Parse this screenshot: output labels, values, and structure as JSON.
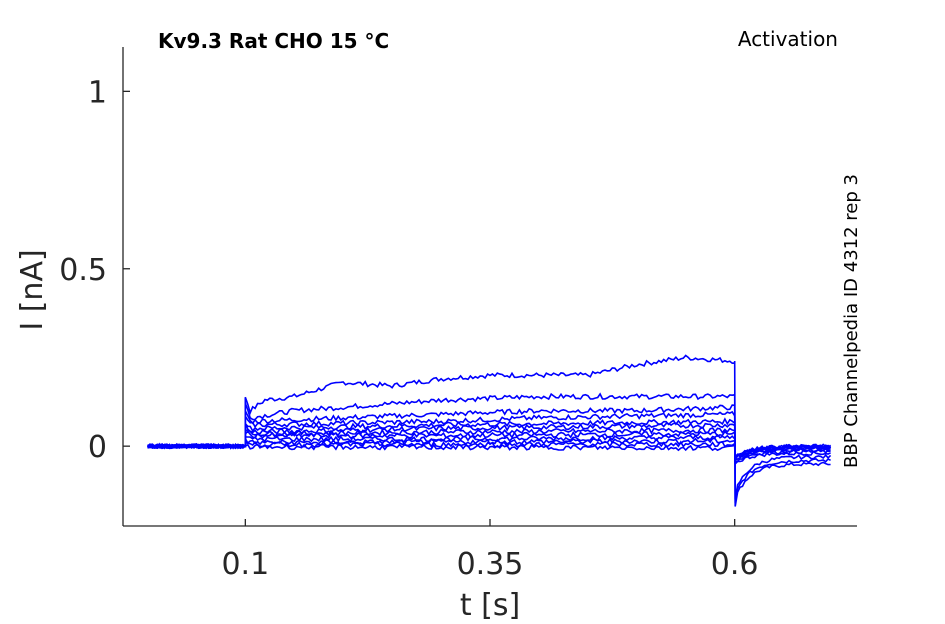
{
  "chart_data": {
    "type": "line",
    "title": "Kv9.3  Rat  CHO  15 °C",
    "protocol": "Activation",
    "side_label": "BBP Channelpedia ID 4312 rep 3",
    "xlabel": "t [s]",
    "ylabel": "I [nA]",
    "xlim": [
      -0.025,
      0.725
    ],
    "ylim": [
      -0.225,
      1.125
    ],
    "xticks": [
      {
        "value": 0.1,
        "label": "0.1"
      },
      {
        "value": 0.35,
        "label": "0.35"
      },
      {
        "value": 0.6,
        "label": "0.6"
      }
    ],
    "yticks": [
      {
        "value": 0,
        "label": "0"
      },
      {
        "value": 0.5,
        "label": "0.5"
      },
      {
        "value": 1,
        "label": "1"
      }
    ],
    "grid": false,
    "line_color": "#0000ff",
    "step_start": 0.1,
    "step_end": 0.6,
    "trace_end": 0.7,
    "series": [
      {
        "values": [
          [
            0.1,
            0.14
          ],
          [
            0.105,
            0.1
          ],
          [
            0.12,
            0.13
          ],
          [
            0.15,
            0.14
          ],
          [
            0.2,
            0.18
          ],
          [
            0.25,
            0.17
          ],
          [
            0.3,
            0.19
          ],
          [
            0.35,
            0.2
          ],
          [
            0.4,
            0.2
          ],
          [
            0.45,
            0.2
          ],
          [
            0.5,
            0.23
          ],
          [
            0.55,
            0.25
          ],
          [
            0.6,
            0.24
          ]
        ],
        "tail": -0.05
      },
      {
        "values": [
          [
            0.1,
            0.12
          ],
          [
            0.105,
            0.08
          ],
          [
            0.15,
            0.1
          ],
          [
            0.2,
            0.11
          ],
          [
            0.3,
            0.13
          ],
          [
            0.4,
            0.14
          ],
          [
            0.5,
            0.14
          ],
          [
            0.6,
            0.14
          ]
        ],
        "tail": -0.04
      },
      {
        "values": [
          [
            0.1,
            0.1
          ],
          [
            0.105,
            0.07
          ],
          [
            0.2,
            0.08
          ],
          [
            0.3,
            0.09
          ],
          [
            0.4,
            0.1
          ],
          [
            0.5,
            0.1
          ],
          [
            0.6,
            0.11
          ]
        ],
        "tail": -0.03
      },
      {
        "values": [
          [
            0.1,
            0.08
          ],
          [
            0.105,
            0.06
          ],
          [
            0.3,
            0.07
          ],
          [
            0.4,
            0.08
          ],
          [
            0.6,
            0.09
          ]
        ],
        "tail": -0.02
      },
      {
        "values": [
          [
            0.1,
            0.07
          ],
          [
            0.105,
            0.05
          ],
          [
            0.3,
            0.06
          ],
          [
            0.6,
            0.07
          ]
        ],
        "tail": -0.015
      },
      {
        "values": [
          [
            0.1,
            0.06
          ],
          [
            0.105,
            0.04
          ],
          [
            0.3,
            0.05
          ],
          [
            0.6,
            0.06
          ]
        ],
        "tail": -0.01
      },
      {
        "values": [
          [
            0.1,
            0.05
          ],
          [
            0.105,
            0.035
          ],
          [
            0.3,
            0.04
          ],
          [
            0.6,
            0.045
          ]
        ],
        "tail": -0.008
      },
      {
        "values": [
          [
            0.1,
            0.04
          ],
          [
            0.105,
            0.03
          ],
          [
            0.3,
            0.03
          ],
          [
            0.6,
            0.035
          ]
        ],
        "tail": -0.005
      },
      {
        "values": [
          [
            0.1,
            0.03
          ],
          [
            0.105,
            0.02
          ],
          [
            0.3,
            0.02
          ],
          [
            0.6,
            0.025
          ]
        ],
        "tail": -0.003
      },
      {
        "values": [
          [
            0.1,
            0.02
          ],
          [
            0.105,
            0.01
          ],
          [
            0.3,
            0.012
          ],
          [
            0.6,
            0.015
          ]
        ],
        "tail": -0.002
      },
      {
        "values": [
          [
            0.1,
            0.01
          ],
          [
            0.105,
            0.005
          ],
          [
            0.3,
            0.005
          ],
          [
            0.6,
            0.005
          ]
        ],
        "tail": 0.0
      },
      {
        "values": [
          [
            0.1,
            0.0
          ],
          [
            0.105,
            -0.002
          ],
          [
            0.3,
            -0.003
          ],
          [
            0.6,
            -0.005
          ]
        ],
        "tail": 0.0
      }
    ]
  }
}
